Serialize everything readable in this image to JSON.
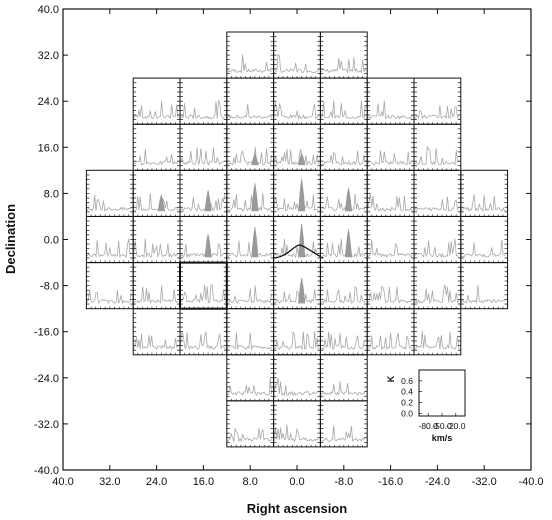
{
  "chart_data": {
    "type": "spectral-map",
    "title": "",
    "xlabel": "Right ascension",
    "ylabel": "Declination",
    "xlim": [
      40.0,
      -40.0
    ],
    "ylim": [
      -40.0,
      40.0
    ],
    "x_ticks": [
      "40.0",
      "32.0",
      "24.0",
      "16.0",
      "8.0",
      "0.0",
      "-8.0",
      "-16.0",
      "-24.0",
      "-32.0",
      "-40.0"
    ],
    "y_ticks": [
      "40.0",
      "32.0",
      "24.0",
      "16.0",
      "8.0",
      "0.0",
      "-8.0",
      "-16.0",
      "-24.0",
      "-32.0",
      "-40.0"
    ],
    "x_tick_values": [
      40,
      32,
      24,
      16,
      8,
      0,
      -8,
      -16,
      -24,
      -32,
      -40
    ],
    "y_tick_values": [
      40,
      32,
      24,
      16,
      8,
      0,
      -8,
      -16,
      -24,
      -32,
      -40
    ],
    "grid": false,
    "cell_size_deg": 8.0,
    "rows": [
      {
        "dec": 32.0,
        "ra": [
          8.0,
          0.0,
          -8.0
        ]
      },
      {
        "dec": 24.0,
        "ra": [
          24.0,
          16.0,
          8.0,
          0.0,
          -8.0,
          -16.0,
          -24.0
        ]
      },
      {
        "dec": 16.0,
        "ra": [
          24.0,
          16.0,
          8.0,
          0.0,
          -8.0,
          -16.0,
          -24.0
        ]
      },
      {
        "dec": 8.0,
        "ra": [
          32.0,
          24.0,
          16.0,
          8.0,
          0.0,
          -8.0,
          -16.0,
          -24.0,
          -32.0
        ]
      },
      {
        "dec": 0.0,
        "ra": [
          32.0,
          24.0,
          16.0,
          8.0,
          0.0,
          -8.0,
          -16.0,
          -24.0,
          -32.0
        ]
      },
      {
        "dec": -8.0,
        "ra": [
          32.0,
          24.0,
          16.0,
          8.0,
          0.0,
          -8.0,
          -16.0,
          -24.0,
          -32.0
        ]
      },
      {
        "dec": -16.0,
        "ra": [
          24.0,
          16.0,
          8.0,
          0.0,
          -8.0,
          -16.0,
          -24.0
        ]
      },
      {
        "dec": -24.0,
        "ra": [
          8.0,
          0.0,
          -8.0
        ]
      },
      {
        "dec": -32.0,
        "ra": [
          8.0,
          0.0,
          -8.0
        ]
      }
    ],
    "peaks": [
      {
        "ra": 24.0,
        "dec": 8.0,
        "amp": 0.35
      },
      {
        "ra": 16.0,
        "dec": 8.0,
        "amp": 0.45
      },
      {
        "ra": 8.0,
        "dec": 8.0,
        "amp": 0.6
      },
      {
        "ra": 0.0,
        "dec": 8.0,
        "amp": 0.7
      },
      {
        "ra": -8.0,
        "dec": 8.0,
        "amp": 0.5
      },
      {
        "ra": 16.0,
        "dec": 0.0,
        "amp": 0.5
      },
      {
        "ra": 8.0,
        "dec": 0.0,
        "amp": 0.65
      },
      {
        "ra": 0.0,
        "dec": 0.0,
        "amp": 0.72
      },
      {
        "ra": -8.0,
        "dec": 0.0,
        "amp": 0.6
      },
      {
        "ra": 0.0,
        "dec": -8.0,
        "amp": 0.55
      },
      {
        "ra": 8.0,
        "dec": 16.0,
        "amp": 0.25
      },
      {
        "ra": 0.0,
        "dec": 16.0,
        "amp": 0.25
      }
    ],
    "highlight_cell": {
      "ra": 16.0,
      "dec": -8.0
    },
    "overlay_curve_cell": {
      "ra": 0.0,
      "dec": 0.0
    },
    "inset": {
      "ylabel": "K",
      "y_ticks": [
        "0.6",
        "0.4",
        "0.2",
        "0.0"
      ],
      "y_tick_values": [
        0.6,
        0.4,
        0.2,
        0.0
      ],
      "ylim": [
        -0.05,
        0.8
      ],
      "x_ticks": [
        "-80.0",
        "-50.0",
        "-20.0"
      ],
      "x_tick_values": [
        -80.0,
        -50.0,
        -20.0
      ],
      "xlim": [
        -100.0,
        0.0
      ],
      "xlabel": "km/s"
    }
  },
  "style": {
    "spectrum_color": "#a8a8a8",
    "emission_color": "#9a9a9a",
    "frame_color": "#111111",
    "overlay_color": "#111111"
  }
}
